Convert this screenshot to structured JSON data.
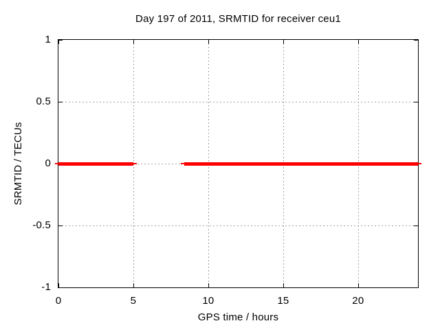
{
  "chart_data": {
    "type": "line",
    "title": "Day 197 of 2011, SRMTID for receiver ceu1",
    "xlabel": "GPS time / hours",
    "ylabel": "SRMTID / TECUs",
    "xlim": [
      0,
      24
    ],
    "ylim": [
      -1,
      1
    ],
    "x_ticks": [
      0,
      5,
      10,
      15,
      20
    ],
    "x_tick_labels": [
      "0",
      "5",
      "10",
      "15",
      "20"
    ],
    "y_ticks": [
      -1,
      -0.5,
      0,
      0.5,
      1
    ],
    "y_tick_labels": [
      "-1",
      "-0.5",
      "0",
      "0.5",
      "1"
    ],
    "grid": true,
    "grid_style": "dashed",
    "legend": "none",
    "series": [
      {
        "name": "SRMTID",
        "color": "#ff0000",
        "style": "thick horizontal line at constant value 0",
        "segments": [
          {
            "x_start": 0,
            "x_end": 5.0,
            "y": 0
          },
          {
            "x_start": 8.4,
            "x_end": 24,
            "y": 0
          }
        ]
      }
    ]
  },
  "colors": {
    "background": "#ffffff",
    "axis": "#000000",
    "grid": "#a0a0a0",
    "line": "#ff0000",
    "text": "#000000"
  }
}
